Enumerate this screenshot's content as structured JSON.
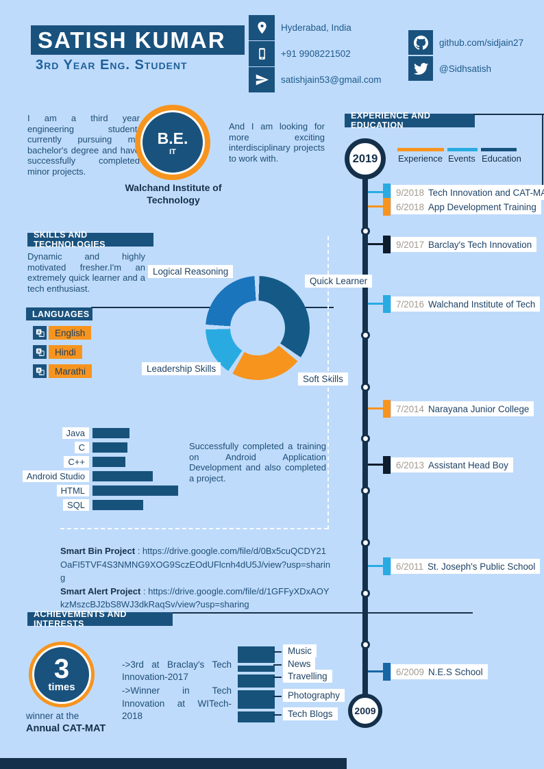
{
  "colors": {
    "bg": "#bfdbfb",
    "banner_navy": "#1a527e",
    "dark_navy": "#14304a",
    "body_text": "#1d4e74",
    "orange": "#f7941e",
    "light_blue": "#29abe2",
    "medium_blue": "#1b75bc",
    "steel_blue": "#155a87",
    "bar_blue": "#17527b",
    "black_marker": "#0f1c2b",
    "education_blue": "#1766a5",
    "date_gray": "#a29a90"
  },
  "header": {
    "name": "SATISH KUMAR",
    "subtitle": "3rd Year Eng. Student"
  },
  "contact": [
    {
      "icon": "location-pin-icon",
      "text": "Hyderabad, India"
    },
    {
      "icon": "phone-icon",
      "text": "+91 9908221502"
    },
    {
      "icon": "send-icon",
      "text": "satishjain53@gmail.com"
    }
  ],
  "social": [
    {
      "icon": "github-icon",
      "text": "github.com/sidjain27"
    },
    {
      "icon": "twitter-icon",
      "text": "@Sidhsatish"
    }
  ],
  "about": {
    "left_text": "I am a third year engineering student, currently pursuing my bachelor's degree and have successfully completed minor projects.",
    "degree": "B.E.",
    "degree_field": "IT",
    "institute": "Walchand Institute of Technology",
    "right_text": "And I am looking for more exciting interdisciplinary projects to work with."
  },
  "timeline": {
    "title": "EXPERIENCE AND EDUCATION",
    "start_year": "2019",
    "end_year": "2009",
    "legend": [
      {
        "label": "Experience",
        "color": "#f7941e"
      },
      {
        "label": "Events",
        "color": "#29abe2"
      },
      {
        "label": "Education",
        "color": "#17537e"
      }
    ],
    "floating_label": "Quick Learner",
    "entries": [
      {
        "date": "9/2018",
        "label": "Tech Innovation and CAT-MAT",
        "color": "#29abe2"
      },
      {
        "date": "6/2018",
        "label": "App Development Training",
        "color": "#f7941e"
      },
      {
        "date": "9/2017",
        "label": "Barclay's Tech Innovation",
        "color": "#0f1c2b"
      },
      {
        "date": "7/2016",
        "label": "Walchand Institute of Tech",
        "color": "#29abe2"
      },
      {
        "date": "7/2014",
        "label": "Narayana Junior College",
        "color": "#f7941e"
      },
      {
        "date": "6/2013",
        "label": "Assistant Head Boy",
        "color": "#0f1c2b"
      },
      {
        "date": "6/2011",
        "label": "St. Joseph's Public School",
        "color": "#29abe2"
      },
      {
        "date": "6/2009",
        "label": "N.E.S School",
        "color": "#1766a5"
      }
    ]
  },
  "skills": {
    "title": "SKILLS AND TECHNOLOGIES",
    "text": "Dynamic and highly motivated fresher.I'm an extremely quick learner and a tech enthusiast."
  },
  "languages": {
    "title": "LANGUAGES",
    "items": [
      {
        "icon": "translate-icon",
        "label": "English"
      },
      {
        "icon": "translate-icon",
        "label": "Hindi"
      },
      {
        "icon": "translate-icon",
        "label": "Marathi"
      }
    ]
  },
  "training_text": "Successfully completed a training on Android Application Development and also completed a project.",
  "projects": [
    {
      "name": "Smart Bin Project",
      "url": "https://drive.google.com/file/d/0Bx5cuQCDY21OaFI5TVF4S3NMNG9XOG9SczEOdUFlcnh4dU5J/view?usp=sharing"
    },
    {
      "name": "Smart Alert Project",
      "url": "https://drive.google.com/file/d/1GFFyXDxAOYkzMszcBJ2bS8WJ3dkRaqSv/view?usp=sharing"
    }
  ],
  "achievements": {
    "title": "ACHIEVEMENTS AND INTERESTS",
    "count": "3",
    "count_unit": "times",
    "caption_top": "winner at the",
    "caption_bottom": "Annual CAT-MAT",
    "notes": [
      "->3rd at Braclay's Tech Innovation-2017",
      "->Winner in Tech Innovation at WITech-2018"
    ]
  },
  "chart_data": [
    {
      "id": "skills-donut",
      "type": "pie",
      "donut": true,
      "labels": [
        "Quick Learner",
        "Soft Skills",
        "Leadership Skills",
        "Logical Reasoning"
      ],
      "values": [
        34,
        22,
        15,
        23
      ],
      "colors": [
        "#155a87",
        "#f7941e",
        "#29abe2",
        "#1b75bc"
      ],
      "legend_position": "floating-labels"
    },
    {
      "id": "tech-bars",
      "type": "bar",
      "orientation": "horizontal",
      "categories": [
        "Java",
        "C",
        "C++",
        "Android Studio",
        "HTML",
        "SQL"
      ],
      "values": [
        43,
        41,
        38,
        70,
        100,
        59
      ],
      "xlim": [
        0,
        100
      ],
      "color": "#17527b"
    },
    {
      "id": "interests",
      "type": "bar",
      "orientation": "vertical-stack",
      "categories": [
        "Music",
        "News",
        "Travelling",
        "Photography",
        "Tech Blogs"
      ],
      "values": [
        24,
        9,
        19,
        27,
        16
      ],
      "color": "#17527b"
    }
  ]
}
